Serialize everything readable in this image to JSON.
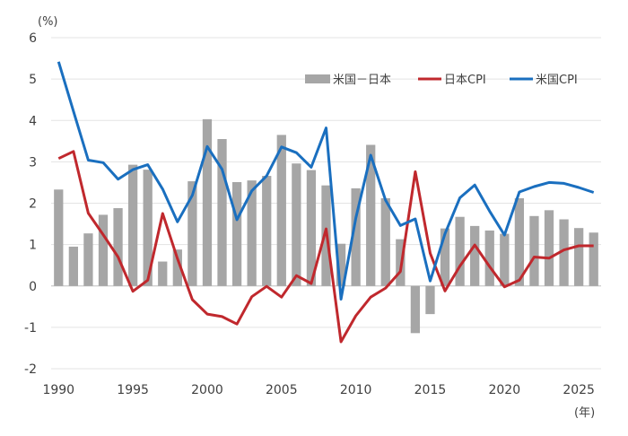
{
  "chart_data": {
    "type": "bar+line",
    "y_unit_label": "(%)",
    "x_unit_label": "(年)",
    "ylim": [
      -2,
      6
    ],
    "yticks": [
      6,
      5,
      4,
      3,
      2,
      1,
      0,
      -1,
      -2
    ],
    "xticks": [
      "1990",
      "1995",
      "2000",
      "2005",
      "2010",
      "2015",
      "2020",
      "2025"
    ],
    "legend_position": "top-right",
    "years": [
      1990,
      1991,
      1992,
      1993,
      1994,
      1995,
      1996,
      1997,
      1998,
      1999,
      2000,
      2001,
      2002,
      2003,
      2004,
      2005,
      2006,
      2007,
      2008,
      2009,
      2010,
      2011,
      2012,
      2013,
      2014,
      2015,
      2016,
      2017,
      2018,
      2019,
      2020,
      2021,
      2022,
      2023,
      2024,
      2025,
      2026
    ],
    "series": [
      {
        "name": "米国－日本",
        "kind": "bar",
        "color": "#a6a6a6",
        "values": [
          2.33,
          0.95,
          1.27,
          1.72,
          1.88,
          2.93,
          2.81,
          0.59,
          0.88,
          2.53,
          4.03,
          3.55,
          2.51,
          2.55,
          2.66,
          3.65,
          2.96,
          2.8,
          2.43,
          1.02,
          2.36,
          3.41,
          2.12,
          1.13,
          -1.14,
          -0.68,
          1.39,
          1.67,
          1.45,
          1.34,
          1.26,
          2.12,
          1.69,
          1.83,
          1.61,
          1.4,
          1.29
        ]
      },
      {
        "name": "日本CPI",
        "kind": "line",
        "color": "#c0282d",
        "values": [
          3.08,
          3.25,
          1.76,
          1.24,
          0.7,
          -0.13,
          0.14,
          1.75,
          0.66,
          -0.33,
          -0.68,
          -0.74,
          -0.92,
          -0.26,
          -0.01,
          -0.27,
          0.25,
          0.06,
          1.38,
          -1.35,
          -0.72,
          -0.27,
          -0.05,
          0.35,
          2.76,
          0.79,
          -0.12,
          0.48,
          0.99,
          0.47,
          -0.02,
          0.14,
          0.7,
          0.67,
          0.87,
          0.97,
          0.97
        ]
      },
      {
        "name": "米国CPI",
        "kind": "line",
        "color": "#1a6fbf",
        "values": [
          5.42,
          4.22,
          3.04,
          2.98,
          2.58,
          2.81,
          2.93,
          2.34,
          1.55,
          2.19,
          3.37,
          2.82,
          1.6,
          2.3,
          2.66,
          3.36,
          3.22,
          2.87,
          3.82,
          -0.32,
          1.64,
          3.16,
          2.07,
          1.46,
          1.62,
          0.12,
          1.26,
          2.13,
          2.44,
          1.81,
          1.23,
          2.27,
          2.4,
          2.5,
          2.48,
          2.38,
          2.26
        ]
      }
    ]
  }
}
